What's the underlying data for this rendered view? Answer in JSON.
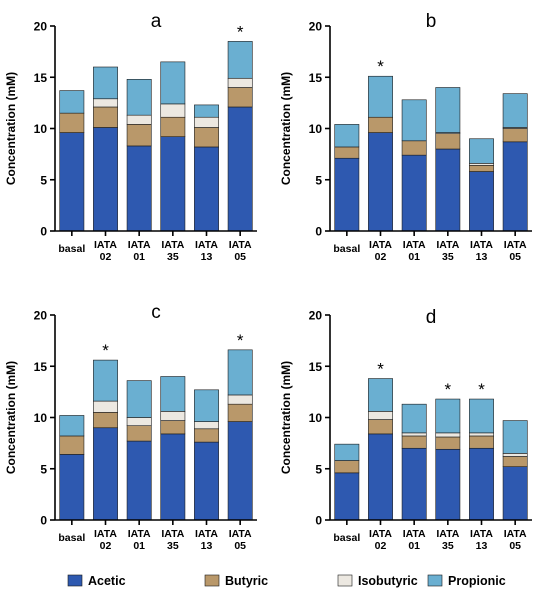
{
  "legend": [
    {
      "label": "Acetic",
      "color": "#2e59b0"
    },
    {
      "label": "Butyric",
      "color": "#b9986a"
    },
    {
      "label": "Isobutyric",
      "color": "#ece8e1"
    },
    {
      "label": "Propionic",
      "color": "#6aafd1"
    }
  ],
  "chart_data": [
    {
      "type": "bar",
      "stacked": true,
      "panel": "a",
      "ylabel": "Concentration (mM)",
      "ylim": [
        0,
        20
      ],
      "yticks": [
        0,
        5,
        10,
        15,
        20
      ],
      "categories": [
        "basal",
        "IATA\n02",
        "IATA\n01",
        "IATA\n35",
        "IATA\n13",
        "IATA\n05"
      ],
      "series": [
        {
          "name": "Acetic",
          "values": [
            9.6,
            10.1,
            8.3,
            9.2,
            8.2,
            12.1
          ]
        },
        {
          "name": "Butyric",
          "values": [
            1.9,
            2.0,
            2.1,
            1.9,
            1.9,
            1.9
          ]
        },
        {
          "name": "Isobutyric",
          "values": [
            0.0,
            0.8,
            0.9,
            1.3,
            1.0,
            0.9
          ]
        },
        {
          "name": "Propionic",
          "values": [
            2.2,
            3.1,
            3.5,
            4.1,
            1.2,
            3.6
          ]
        }
      ],
      "significance": [
        "",
        "",
        "",
        "",
        "",
        "*"
      ]
    },
    {
      "type": "bar",
      "stacked": true,
      "panel": "b",
      "ylabel": "Concentration (mM)",
      "ylim": [
        0,
        20
      ],
      "yticks": [
        0,
        5,
        10,
        15,
        20
      ],
      "categories": [
        "basal",
        "IATA\n02",
        "IATA\n01",
        "IATA\n35",
        "IATA\n13",
        "IATA\n05"
      ],
      "series": [
        {
          "name": "Acetic",
          "values": [
            7.1,
            9.6,
            7.4,
            8.0,
            5.8,
            8.7
          ]
        },
        {
          "name": "Butyric",
          "values": [
            1.1,
            1.5,
            1.4,
            1.5,
            0.6,
            1.3
          ]
        },
        {
          "name": "Isobutyric",
          "values": [
            0.0,
            0.0,
            0.0,
            0.1,
            0.2,
            0.1
          ]
        },
        {
          "name": "Propionic",
          "values": [
            2.2,
            4.0,
            4.0,
            4.4,
            2.4,
            3.3
          ]
        }
      ],
      "significance": [
        "",
        "*",
        "",
        "",
        "",
        ""
      ]
    },
    {
      "type": "bar",
      "stacked": true,
      "panel": "c",
      "ylabel": "Concentration (mM)",
      "ylim": [
        0,
        20
      ],
      "yticks": [
        0,
        5,
        10,
        15,
        20
      ],
      "categories": [
        "basal",
        "IATA\n02",
        "IATA\n01",
        "IATA\n35",
        "IATA\n13",
        "IATA\n05"
      ],
      "series": [
        {
          "name": "Acetic",
          "values": [
            6.4,
            9.0,
            7.7,
            8.4,
            7.6,
            9.6
          ]
        },
        {
          "name": "Butyric",
          "values": [
            1.8,
            1.5,
            1.5,
            1.3,
            1.3,
            1.7
          ]
        },
        {
          "name": "Isobutyric",
          "values": [
            0.0,
            1.1,
            0.8,
            0.9,
            0.7,
            0.9
          ]
        },
        {
          "name": "Propionic",
          "values": [
            2.0,
            4.0,
            3.6,
            3.4,
            3.1,
            4.4
          ]
        }
      ],
      "significance": [
        "",
        "*",
        "",
        "",
        "",
        "*"
      ]
    },
    {
      "type": "bar",
      "stacked": true,
      "panel": "d",
      "ylabel": "Concentration (mM)",
      "ylim": [
        0,
        20
      ],
      "yticks": [
        0,
        5,
        10,
        15,
        20
      ],
      "categories": [
        "basal",
        "IATA\n02",
        "IATA\n01",
        "IATA\n35",
        "IATA\n13",
        "IATA\n05"
      ],
      "series": [
        {
          "name": "Acetic",
          "values": [
            4.6,
            8.4,
            7.0,
            6.9,
            7.0,
            5.2
          ]
        },
        {
          "name": "Butyric",
          "values": [
            1.2,
            1.4,
            1.2,
            1.2,
            1.2,
            1.0
          ]
        },
        {
          "name": "Isobutyric",
          "values": [
            0.0,
            0.8,
            0.3,
            0.4,
            0.3,
            0.3
          ]
        },
        {
          "name": "Propionic",
          "values": [
            1.6,
            3.2,
            2.8,
            3.3,
            3.3,
            3.2
          ]
        }
      ],
      "significance": [
        "",
        "*",
        "",
        "*",
        "*",
        ""
      ]
    }
  ]
}
